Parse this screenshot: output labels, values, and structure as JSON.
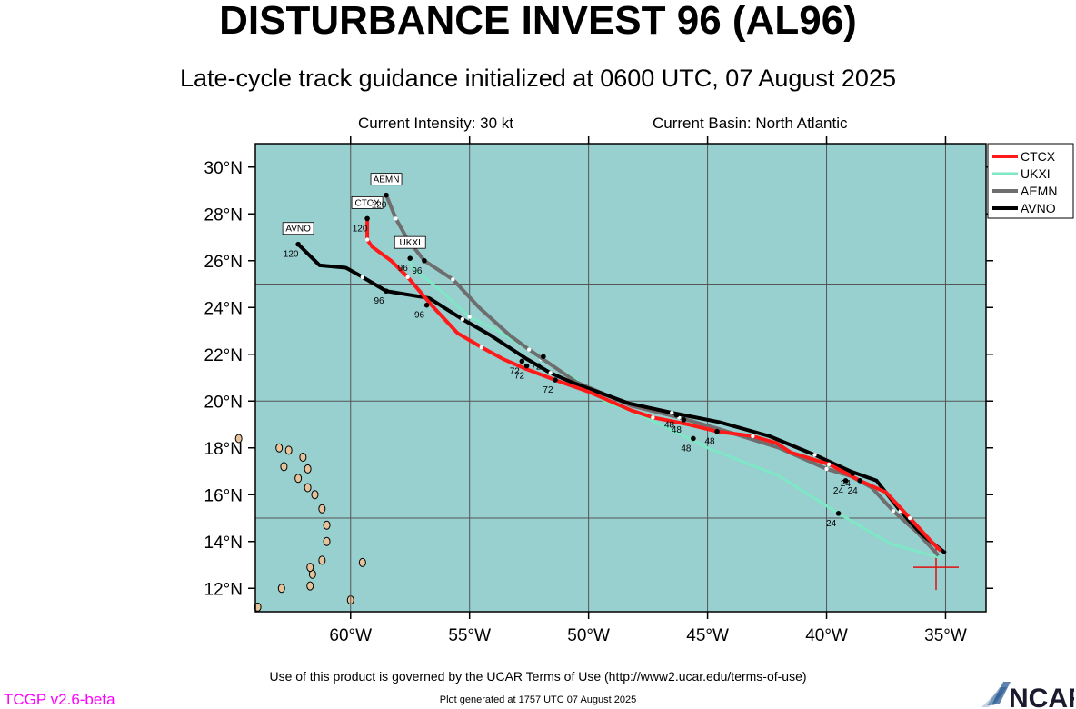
{
  "header": {
    "title": "DISTURBANCE INVEST 96 (AL96)",
    "subtitle": "Late-cycle track guidance initialized at 0600 UTC, 07 August 2025",
    "intensity": "Current Intensity: 30 kt",
    "basin": "Current Basin: North Atlantic"
  },
  "footer": {
    "terms": "Use of this product is governed by the UCAR Terms of Use (http://www2.ucar.edu/terms-of-use)",
    "version": "TCGP v2.6-beta",
    "generated": "Plot generated at 1757 UTC   07 August 2025",
    "logo": "NCAR"
  },
  "colors": {
    "ocean": "#98cfcf",
    "land": "#e6c39a",
    "grid": "#555555",
    "version": "#ff00ff"
  },
  "chart_data": {
    "type": "line",
    "xlim": [
      -64,
      -33.3
    ],
    "ylim": [
      11,
      31
    ],
    "xticks": [
      {
        "v": -60,
        "label": "60°W"
      },
      {
        "v": -55,
        "label": "55°W"
      },
      {
        "v": -50,
        "label": "50°W"
      },
      {
        "v": -45,
        "label": "45°W"
      },
      {
        "v": -40,
        "label": "40°W"
      },
      {
        "v": -35,
        "label": "35°W"
      }
    ],
    "yticks": [
      {
        "v": 12,
        "label": "12°N"
      },
      {
        "v": 14,
        "label": "14°N"
      },
      {
        "v": 16,
        "label": "16°N"
      },
      {
        "v": 18,
        "label": "18°N"
      },
      {
        "v": 20,
        "label": "20°N"
      },
      {
        "v": 22,
        "label": "22°N"
      },
      {
        "v": 24,
        "label": "24°N"
      },
      {
        "v": 26,
        "label": "26°N"
      },
      {
        "v": 28,
        "label": "28°N"
      },
      {
        "v": 30,
        "label": "30°N"
      }
    ],
    "gridlines": {
      "lon": [
        -60,
        -55,
        -50,
        -45,
        -40,
        -35
      ],
      "lat": [
        15,
        20,
        25
      ]
    },
    "grid": true,
    "legend_position": "top-right",
    "current_position": [
      -35.4,
      12.9
    ],
    "series": [
      {
        "name": "CTCX",
        "color": "#ff1a1a",
        "width": 4,
        "track": [
          [
            -35.2,
            13.6
          ],
          [
            -35.6,
            14.0
          ],
          [
            -36.5,
            15.0
          ],
          [
            -37.5,
            16.1
          ],
          [
            -38.6,
            16.6
          ],
          [
            -39.9,
            17.3
          ],
          [
            -41.5,
            17.8
          ],
          [
            -42.1,
            18.2
          ],
          [
            -43.1,
            18.5
          ],
          [
            -44.6,
            18.7
          ],
          [
            -45.8,
            19.0
          ],
          [
            -47.3,
            19.3
          ],
          [
            -48.2,
            19.6
          ],
          [
            -50.0,
            20.4
          ],
          [
            -51.4,
            20.9
          ],
          [
            -52.7,
            21.4
          ],
          [
            -53.6,
            21.8
          ],
          [
            -54.5,
            22.3
          ],
          [
            -55.5,
            22.9
          ],
          [
            -56.6,
            24.1
          ],
          [
            -57.6,
            25.3
          ],
          [
            -58.3,
            26.0
          ],
          [
            -59.1,
            26.6
          ],
          [
            -59.3,
            26.9
          ],
          [
            -59.3,
            27.8
          ]
        ],
        "markers": [
          {
            "pt": [
              -38.6,
              16.6
            ],
            "label": "24"
          },
          {
            "pt": [
              -44.6,
              18.7
            ],
            "label": "48"
          },
          {
            "pt": [
              -51.4,
              20.9
            ],
            "label": "72"
          },
          {
            "pt": [
              -56.8,
              24.1
            ],
            "label": "96"
          },
          {
            "pt": [
              -59.3,
              27.8
            ],
            "label": "120"
          }
        ],
        "end_label": "CTCX"
      },
      {
        "name": "UKXI",
        "color": "#7ee8c6",
        "width": 3,
        "track": [
          [
            -35.2,
            13.3
          ],
          [
            -37.3,
            13.9
          ],
          [
            -39.5,
            15.2
          ],
          [
            -42.0,
            16.8
          ],
          [
            -45.0,
            18.0
          ],
          [
            -48.0,
            19.5
          ],
          [
            -49.2,
            19.9
          ],
          [
            -50.5,
            20.9
          ],
          [
            -52.0,
            21.8
          ],
          [
            -53.0,
            22.5
          ],
          [
            -54.0,
            23.1
          ],
          [
            -55.0,
            23.6
          ],
          [
            -56.3,
            24.8
          ],
          [
            -57.4,
            25.7
          ],
          [
            -57.5,
            26.1
          ]
        ],
        "markers": [
          {
            "pt": [
              -39.5,
              15.2
            ],
            "label": "24"
          },
          {
            "pt": [
              -45.6,
              18.4
            ],
            "label": "48"
          },
          {
            "pt": [
              -52.6,
              21.5
            ],
            "label": "72"
          },
          {
            "pt": [
              -57.5,
              26.1
            ],
            "label": "96"
          }
        ],
        "end_label": "UKXI"
      },
      {
        "name": "AEMN",
        "color": "#6e6e6e",
        "width": 4,
        "track": [
          [
            -35.3,
            13.4
          ],
          [
            -36.2,
            14.4
          ],
          [
            -37.2,
            15.3
          ],
          [
            -38.1,
            16.3
          ],
          [
            -39.0,
            16.8
          ],
          [
            -40.0,
            17.1
          ],
          [
            -42.0,
            18.0
          ],
          [
            -44.5,
            18.8
          ],
          [
            -46.2,
            19.3
          ],
          [
            -48.2,
            19.8
          ],
          [
            -50.5,
            20.8
          ],
          [
            -52.5,
            22.2
          ],
          [
            -53.3,
            22.8
          ],
          [
            -54.6,
            24.0
          ],
          [
            -55.7,
            25.2
          ],
          [
            -56.9,
            26.0
          ],
          [
            -57.6,
            26.9
          ],
          [
            -58.1,
            27.8
          ],
          [
            -58.5,
            28.8
          ]
        ],
        "markers": [
          {
            "pt": [
              -39.2,
              16.6
            ],
            "label": "24"
          },
          {
            "pt": [
              -46.0,
              19.2
            ],
            "label": "48"
          },
          {
            "pt": [
              -52.8,
              21.7
            ],
            "label": "72"
          },
          {
            "pt": [
              -56.9,
              26.0
            ],
            "label": "96"
          },
          {
            "pt": [
              -58.5,
              28.8
            ],
            "label": "120"
          }
        ],
        "end_label": "AEMN"
      },
      {
        "name": "AVNO",
        "color": "#000000",
        "width": 4,
        "track": [
          [
            -35.0,
            13.5
          ],
          [
            -36.0,
            14.3
          ],
          [
            -36.9,
            15.3
          ],
          [
            -37.9,
            16.6
          ],
          [
            -39.0,
            17.0
          ],
          [
            -40.5,
            17.7
          ],
          [
            -42.4,
            18.5
          ],
          [
            -44.5,
            19.1
          ],
          [
            -46.5,
            19.5
          ],
          [
            -48.3,
            19.9
          ],
          [
            -50.7,
            20.8
          ],
          [
            -51.6,
            21.2
          ],
          [
            -52.6,
            21.8
          ],
          [
            -54.1,
            22.8
          ],
          [
            -55.3,
            23.5
          ],
          [
            -56.7,
            24.4
          ],
          [
            -58.5,
            24.7
          ],
          [
            -59.5,
            25.3
          ],
          [
            -60.2,
            25.7
          ],
          [
            -61.3,
            25.8
          ],
          [
            -62.2,
            26.7
          ]
        ],
        "markers": [
          {
            "pt": [
              -38.9,
              16.9
            ],
            "label": "24"
          },
          {
            "pt": [
              -46.3,
              19.4
            ],
            "label": "48"
          },
          {
            "pt": [
              -51.9,
              21.9
            ],
            "label": "72"
          },
          {
            "pt": [
              -58.5,
              24.7
            ],
            "label": "96"
          },
          {
            "pt": [
              -62.2,
              26.7
            ],
            "label": "120"
          }
        ],
        "end_label": "AVNO"
      }
    ],
    "islands": [
      [
        -61.8,
        16.3
      ],
      [
        -61.5,
        16.0
      ],
      [
        -61.2,
        15.4
      ],
      [
        -61.0,
        14.7
      ],
      [
        -61.0,
        14.0
      ],
      [
        -61.2,
        13.2
      ],
      [
        -61.6,
        12.6
      ],
      [
        -61.7,
        12.1
      ],
      [
        -59.5,
        13.1
      ],
      [
        -62.8,
        17.2
      ],
      [
        -62.6,
        17.9
      ],
      [
        -62.0,
        17.6
      ],
      [
        -61.8,
        17.1
      ],
      [
        -63.0,
        18.0
      ],
      [
        -62.2,
        16.7
      ],
      [
        -61.7,
        12.9
      ],
      [
        -64.7,
        18.4
      ],
      [
        -62.9,
        12.0
      ],
      [
        -60.0,
        11.5
      ],
      [
        -63.9,
        11.2
      ]
    ]
  }
}
